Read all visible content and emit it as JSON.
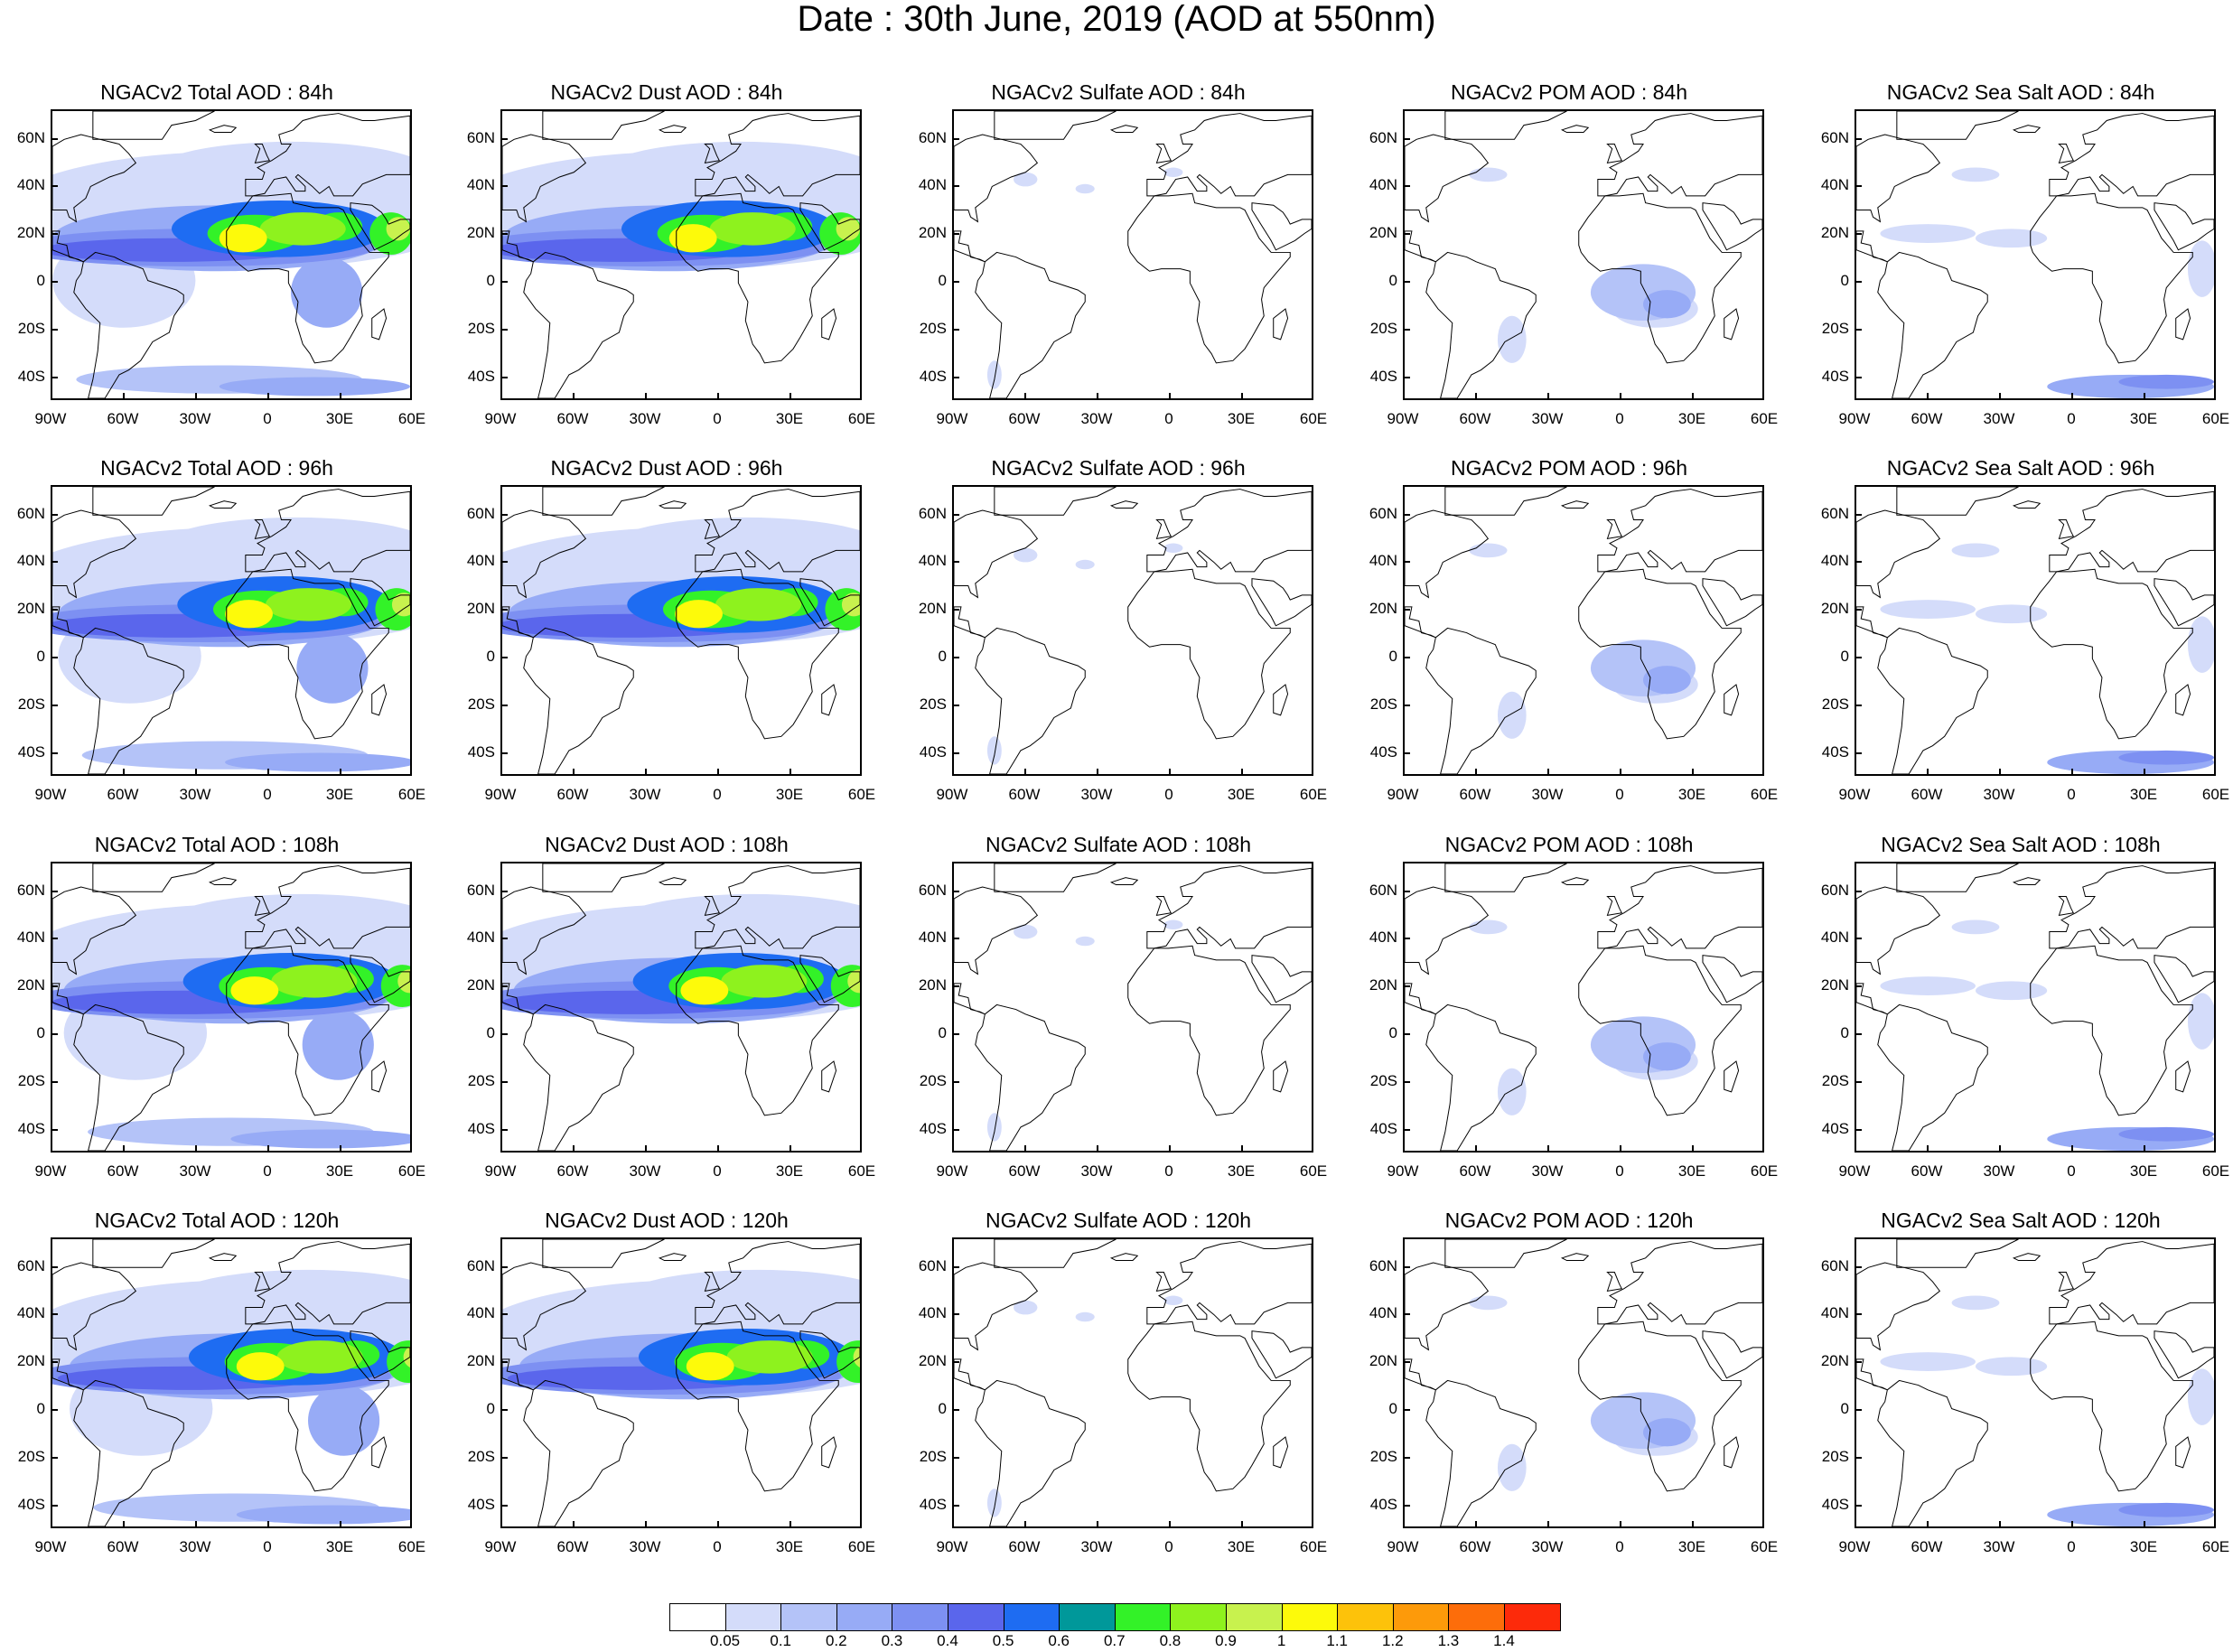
{
  "title": "Date : 30th June, 2019 (AOD at 550nm)",
  "lat_ticks": [
    "60N",
    "40N",
    "20N",
    "0",
    "20S",
    "40S"
  ],
  "lon_ticks": [
    "90W",
    "60W",
    "30W",
    "0",
    "30E",
    "60E"
  ],
  "columns": [
    {
      "key": "total",
      "name": "NGACv2 Total AOD"
    },
    {
      "key": "dust",
      "name": "NGACv2 Dust AOD"
    },
    {
      "key": "sulfate",
      "name": "NGACv2 Sulfate AOD"
    },
    {
      "key": "pom",
      "name": "NGACv2 POM AOD"
    },
    {
      "key": "seasalt",
      "name": "NGACv2 Sea Salt AOD"
    }
  ],
  "panels": [
    [
      "NGACv2 Total AOD : 84h",
      "NGACv2 Dust AOD : 84h",
      "NGACv2 Sulfate AOD : 84h",
      "NGACv2 POM AOD : 84h",
      "NGACv2 Sea Salt AOD : 84h"
    ],
    [
      "NGACv2 Total AOD : 96h",
      "NGACv2 Dust AOD : 96h",
      "NGACv2 Sulfate AOD : 96h",
      "NGACv2 POM AOD : 96h",
      "NGACv2 Sea Salt AOD : 96h"
    ],
    [
      "NGACv2 Total AOD : 108h",
      "NGACv2 Dust AOD : 108h",
      "NGACv2 Sulfate AOD : 108h",
      "NGACv2 POM AOD : 108h",
      "NGACv2 Sea Salt AOD : 108h"
    ],
    [
      "NGACv2 Total AOD : 120h",
      "NGACv2 Dust AOD : 120h",
      "NGACv2 Sulfate AOD : 120h",
      "NGACv2 POM AOD : 120h",
      "NGACv2 Sea Salt  AOD : 120h"
    ]
  ],
  "colorbar": {
    "labels": [
      "0.05",
      "0.1",
      "0.2",
      "0.3",
      "0.4",
      "0.5",
      "0.6",
      "0.7",
      "0.8",
      "0.9",
      "1",
      "1.1",
      "1.2",
      "1.3",
      "1.4"
    ],
    "colors": [
      "#ffffff",
      "#d4dcfa",
      "#b4c3f8",
      "#97abf6",
      "#7d90f2",
      "#5a66ec",
      "#1e6cf2",
      "#00989a",
      "#33f228",
      "#8ef21e",
      "#c8f24e",
      "#fdfa0a",
      "#fdc20a",
      "#fd9a0a",
      "#fd6d0a",
      "#fd2a0a"
    ]
  }
}
